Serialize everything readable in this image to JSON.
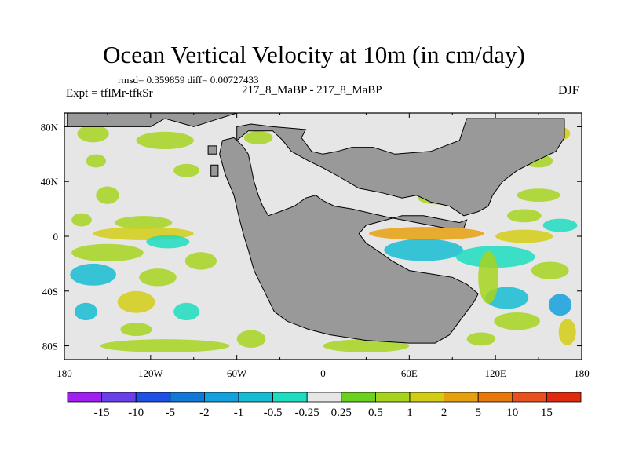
{
  "chart_data": {
    "type": "heatmap",
    "title": "Ocean Vertical Velocity at 10m (in cm/day)",
    "stats_text": "rmsd= 0.359859 diff= 0.00727433",
    "left_label": "Expt = tflMr-tfkSr",
    "center_label": "217_8_MaBP - 217_8_MaBP",
    "right_label": "DJF",
    "rmsd": 0.359859,
    "diff": 0.00727433,
    "units": "cm/day",
    "xlim": [
      -180,
      180
    ],
    "ylim": [
      -90,
      90
    ],
    "x_ticks": [
      {
        "value": -180,
        "label": "180"
      },
      {
        "value": -120,
        "label": "120W"
      },
      {
        "value": -60,
        "label": "60W"
      },
      {
        "value": 0,
        "label": "0"
      },
      {
        "value": 60,
        "label": "60E"
      },
      {
        "value": 120,
        "label": "120E"
      },
      {
        "value": 180,
        "label": "180"
      }
    ],
    "y_ticks": [
      {
        "value": 80,
        "label": "80N"
      },
      {
        "value": 40,
        "label": "40N"
      },
      {
        "value": 0,
        "label": "0"
      },
      {
        "value": -40,
        "label": "40S"
      },
      {
        "value": -80,
        "label": "80S"
      }
    ],
    "colorbar": {
      "labels": [
        "-15",
        "-10",
        "-5",
        "-2",
        "-1",
        "-0.5",
        "-0.25",
        "0.25",
        "0.5",
        "1",
        "2",
        "5",
        "10",
        "15"
      ],
      "colors": [
        "#a020f0",
        "#6a3ee8",
        "#1e50e6",
        "#1178d8",
        "#14a0dc",
        "#18bcd2",
        "#1edcc0",
        "#e6e6e6",
        "#6ad21e",
        "#a6d41e",
        "#d2cc14",
        "#e6a00e",
        "#e8780c",
        "#e85020",
        "#e02a10"
      ]
    },
    "land_color": "#999999",
    "ocean_background": "#e6e6e6",
    "land": [
      {
        "name": "continent-main",
        "points": [
          [
            -60,
            70
          ],
          [
            -52,
            77
          ],
          [
            -35,
            77
          ],
          [
            -28,
            70
          ],
          [
            -22,
            62
          ],
          [
            -10,
            55
          ],
          [
            0,
            50
          ],
          [
            12,
            43
          ],
          [
            25,
            35
          ],
          [
            40,
            32
          ],
          [
            55,
            28
          ],
          [
            65,
            30
          ],
          [
            75,
            25
          ],
          [
            88,
            22
          ],
          [
            98,
            15
          ],
          [
            108,
            18
          ],
          [
            115,
            22
          ],
          [
            118,
            30
          ],
          [
            125,
            40
          ],
          [
            135,
            48
          ],
          [
            148,
            55
          ],
          [
            162,
            62
          ],
          [
            168,
            72
          ],
          [
            168,
            86
          ],
          [
            100,
            86
          ],
          [
            95,
            70
          ],
          [
            75,
            62
          ],
          [
            50,
            60
          ],
          [
            35,
            65
          ],
          [
            20,
            65
          ],
          [
            10,
            62
          ],
          [
            0,
            60
          ],
          [
            -8,
            62
          ],
          [
            -15,
            72
          ],
          [
            -12,
            78
          ],
          [
            -35,
            80
          ],
          [
            -50,
            82
          ],
          [
            -60,
            80
          ]
        ]
      },
      {
        "name": "continent-west",
        "points": [
          [
            -62,
            72
          ],
          [
            -70,
            70
          ],
          [
            -72,
            60
          ],
          [
            -68,
            45
          ],
          [
            -62,
            30
          ],
          [
            -58,
            12
          ],
          [
            -55,
            0
          ],
          [
            -52,
            -10
          ],
          [
            -48,
            -25
          ],
          [
            -40,
            -42
          ],
          [
            -34,
            -55
          ],
          [
            -25,
            -62
          ],
          [
            -10,
            -68
          ],
          [
            5,
            -72
          ],
          [
            30,
            -76
          ],
          [
            60,
            -78
          ],
          [
            78,
            -78
          ],
          [
            88,
            -72
          ],
          [
            95,
            -62
          ],
          [
            105,
            -48
          ],
          [
            108,
            -42
          ],
          [
            100,
            -35
          ],
          [
            90,
            -30
          ],
          [
            78,
            -28
          ],
          [
            60,
            -25
          ],
          [
            48,
            -18
          ],
          [
            40,
            -12
          ],
          [
            30,
            -5
          ],
          [
            25,
            2
          ],
          [
            30,
            8
          ],
          [
            55,
            15
          ],
          [
            70,
            15
          ],
          [
            85,
            12
          ],
          [
            95,
            10
          ],
          [
            100,
            12
          ],
          [
            98,
            6
          ],
          [
            85,
            6
          ],
          [
            65,
            10
          ],
          [
            45,
            14
          ],
          [
            20,
            20
          ],
          [
            8,
            22
          ],
          [
            0,
            26
          ],
          [
            -5,
            30
          ],
          [
            -12,
            28
          ],
          [
            -20,
            22
          ],
          [
            -30,
            18
          ],
          [
            -38,
            15
          ],
          [
            -42,
            22
          ],
          [
            -45,
            30
          ],
          [
            -48,
            40
          ],
          [
            -50,
            50
          ],
          [
            -52,
            60
          ],
          [
            -56,
            66
          ]
        ]
      },
      {
        "name": "arctic-cap",
        "points": [
          [
            -178,
            80
          ],
          [
            -120,
            80
          ],
          [
            -110,
            86
          ],
          [
            -90,
            80
          ],
          [
            -75,
            85
          ],
          [
            -60,
            90
          ],
          [
            -178,
            90
          ]
        ]
      },
      {
        "name": "island-a",
        "points": [
          [
            -80,
            66
          ],
          [
            -74,
            66
          ],
          [
            -74,
            60
          ],
          [
            -80,
            60
          ]
        ]
      },
      {
        "name": "island-b",
        "points": [
          [
            -78,
            52
          ],
          [
            -73,
            52
          ],
          [
            -73,
            44
          ],
          [
            -78,
            44
          ]
        ]
      }
    ],
    "anomaly_patches": [
      {
        "lon": -160,
        "lat": 75,
        "w": 22,
        "h": 4,
        "level": "0.5"
      },
      {
        "lon": -110,
        "lat": 70,
        "w": 40,
        "h": 4,
        "level": "0.5"
      },
      {
        "lon": -158,
        "lat": 55,
        "w": 14,
        "h": 3,
        "level": "0.5"
      },
      {
        "lon": -95,
        "lat": 48,
        "w": 18,
        "h": 3,
        "level": "0.5"
      },
      {
        "lon": -150,
        "lat": 30,
        "w": 16,
        "h": 4,
        "level": "0.5"
      },
      {
        "lon": -168,
        "lat": 12,
        "w": 14,
        "h": 3,
        "level": "0.5"
      },
      {
        "lon": -125,
        "lat": 10,
        "w": 40,
        "h": 3,
        "level": "0.5"
      },
      {
        "lon": -125,
        "lat": 2,
        "w": 70,
        "h": 3,
        "level": "1"
      },
      {
        "lon": -108,
        "lat": -4,
        "w": 30,
        "h": 3,
        "level": "-0.25"
      },
      {
        "lon": -150,
        "lat": -12,
        "w": 50,
        "h": 4,
        "level": "0.5"
      },
      {
        "lon": -85,
        "lat": -18,
        "w": 22,
        "h": 4,
        "level": "0.5"
      },
      {
        "lon": -160,
        "lat": -28,
        "w": 32,
        "h": 5,
        "level": "-0.5"
      },
      {
        "lon": -115,
        "lat": -30,
        "w": 26,
        "h": 4,
        "level": "0.5"
      },
      {
        "lon": -130,
        "lat": -48,
        "w": 26,
        "h": 5,
        "level": "1"
      },
      {
        "lon": -165,
        "lat": -55,
        "w": 16,
        "h": 4,
        "level": "-0.5"
      },
      {
        "lon": -95,
        "lat": -55,
        "w": 18,
        "h": 4,
        "level": "-0.25"
      },
      {
        "lon": -130,
        "lat": -68,
        "w": 22,
        "h": 3,
        "level": "0.5"
      },
      {
        "lon": -110,
        "lat": -80,
        "w": 90,
        "h": 3,
        "level": "0.5"
      },
      {
        "lon": 30,
        "lat": -80,
        "w": 60,
        "h": 3,
        "level": "0.5"
      },
      {
        "lon": 72,
        "lat": 2,
        "w": 80,
        "h": 3,
        "level": "2"
      },
      {
        "lon": 140,
        "lat": 0,
        "w": 40,
        "h": 3,
        "level": "1"
      },
      {
        "lon": 70,
        "lat": -10,
        "w": 55,
        "h": 5,
        "level": "-0.5"
      },
      {
        "lon": 120,
        "lat": -15,
        "w": 55,
        "h": 5,
        "level": "-0.25"
      },
      {
        "lon": 158,
        "lat": -25,
        "w": 26,
        "h": 4,
        "level": "0.5"
      },
      {
        "lon": 128,
        "lat": -45,
        "w": 30,
        "h": 5,
        "level": "-0.5"
      },
      {
        "lon": 165,
        "lat": -50,
        "w": 16,
        "h": 5,
        "level": "-1"
      },
      {
        "lon": 135,
        "lat": -62,
        "w": 32,
        "h": 4,
        "level": "0.5"
      },
      {
        "lon": 115,
        "lat": -30,
        "w": 14,
        "h": 12,
        "level": "0.5"
      },
      {
        "lon": 170,
        "lat": -70,
        "w": 12,
        "h": 6,
        "level": "1"
      },
      {
        "lon": 150,
        "lat": 30,
        "w": 30,
        "h": 3,
        "level": "0.5"
      },
      {
        "lon": 140,
        "lat": 15,
        "w": 24,
        "h": 3,
        "level": "0.5"
      },
      {
        "lon": 165,
        "lat": 8,
        "w": 24,
        "h": 3,
        "level": "-0.25"
      },
      {
        "lon": 150,
        "lat": 55,
        "w": 20,
        "h": 3,
        "level": "0.5"
      },
      {
        "lon": 165,
        "lat": 75,
        "w": 14,
        "h": 3,
        "level": "1"
      },
      {
        "lon": 80,
        "lat": 28,
        "w": 28,
        "h": 3,
        "level": "0.5"
      },
      {
        "lon": -45,
        "lat": 72,
        "w": 20,
        "h": 3,
        "level": "0.5"
      },
      {
        "lon": -50,
        "lat": -75,
        "w": 20,
        "h": 4,
        "level": "0.5"
      },
      {
        "lon": 110,
        "lat": -75,
        "w": 20,
        "h": 3,
        "level": "0.5"
      }
    ]
  }
}
